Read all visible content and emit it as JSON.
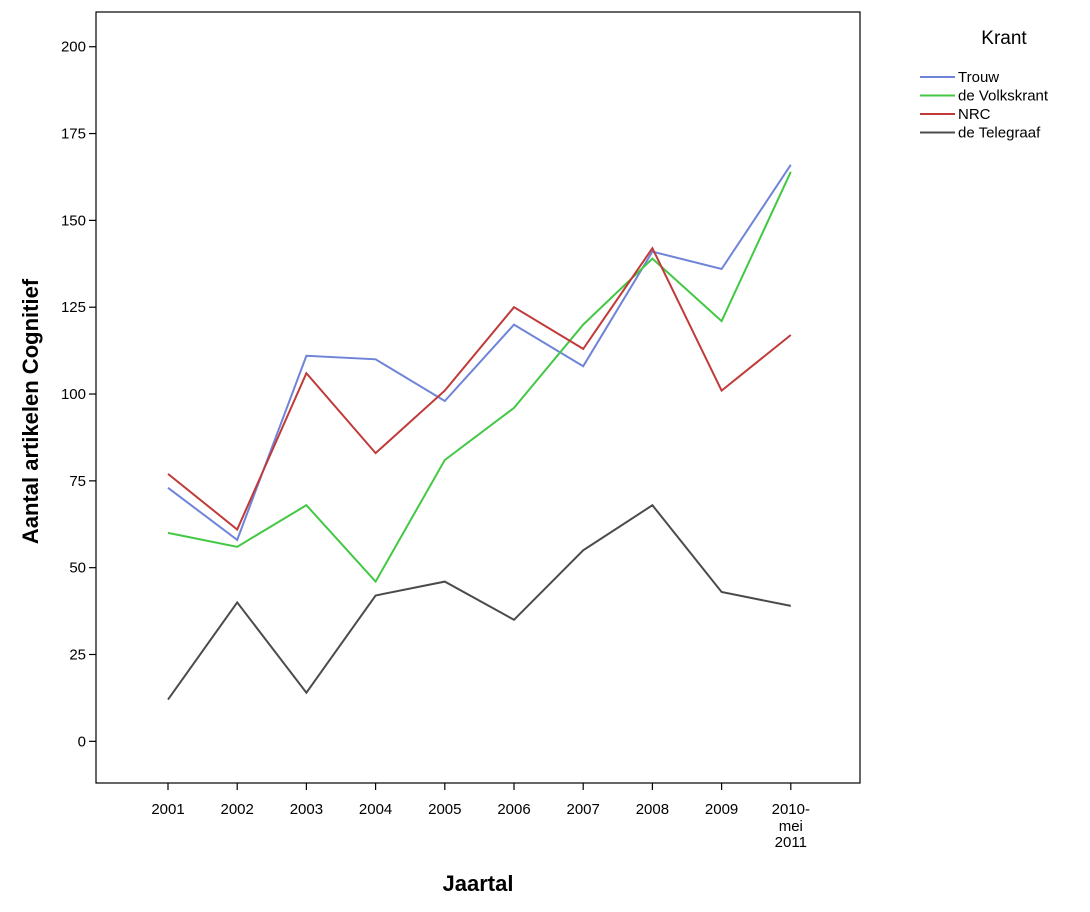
{
  "chart_data": {
    "type": "line",
    "xlabel": "Jaartal",
    "ylabel": "Aantal artikelen Cognitief",
    "categories": [
      [
        "2001"
      ],
      [
        "2002"
      ],
      [
        "2003"
      ],
      [
        "2004"
      ],
      [
        "2005"
      ],
      [
        "2006"
      ],
      [
        "2007"
      ],
      [
        "2008"
      ],
      [
        "2009"
      ],
      [
        "2010-",
        "mei",
        "2011"
      ]
    ],
    "ylim": [
      -12,
      210
    ],
    "yticks": [
      0,
      25,
      50,
      75,
      100,
      125,
      150,
      175,
      200
    ],
    "grid": false,
    "legend": {
      "title": "Krant",
      "position": "right"
    },
    "series": [
      {
        "name": "Trouw",
        "color": "#6f84d8",
        "values": [
          73,
          58,
          111,
          110,
          98,
          120,
          108,
          141,
          136,
          166
        ]
      },
      {
        "name": "de Volkskrant",
        "color": "#43c844",
        "values": [
          60,
          56,
          68,
          46,
          81,
          96,
          120,
          139,
          121,
          164
        ]
      },
      {
        "name": "NRC",
        "color": "#c03a3a",
        "values": [
          77,
          61,
          106,
          83,
          101,
          125,
          113,
          142,
          101,
          117
        ]
      },
      {
        "name": "de Telegraaf",
        "color": "#4b4b4b",
        "values": [
          12,
          40,
          14,
          42,
          46,
          35,
          55,
          68,
          43,
          39
        ]
      }
    ]
  }
}
